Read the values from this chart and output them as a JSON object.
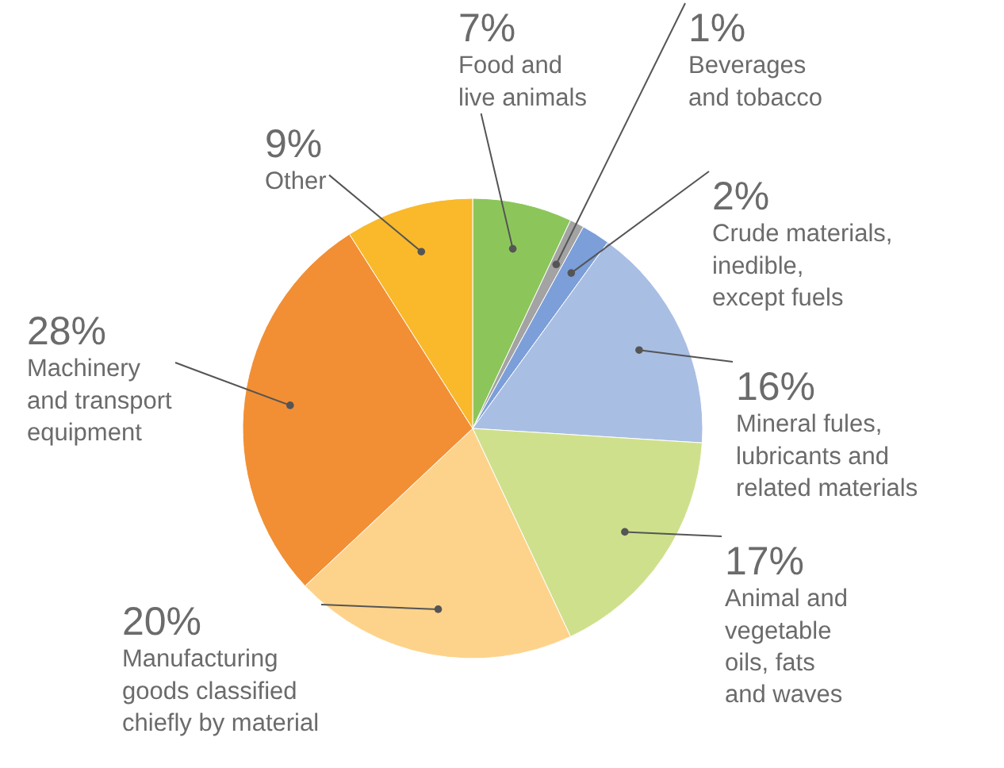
{
  "chart_data": {
    "type": "pie",
    "categories": [
      "Food and live animals",
      "Beverages and tobacco",
      "Crude materials, inedible, except fuels",
      "Mineral fules, lubricants and related materials",
      "Animal and vegetable oils, fats and waves",
      "Manufacturing goods classified chiefly by material",
      "Machinery and transport equipment",
      "Other"
    ],
    "values": [
      7,
      1,
      2,
      16,
      17,
      20,
      28,
      9
    ],
    "value_labels": [
      "7%",
      "1%",
      "2%",
      "16%",
      "17%",
      "20%",
      "28%",
      "9%"
    ],
    "colors": [
      "#8cc65b",
      "#a3a3a3",
      "#7c9fd9",
      "#a9bee3",
      "#cfe08c",
      "#fdd38b",
      "#f28f34",
      "#f9b92b"
    ]
  }
}
